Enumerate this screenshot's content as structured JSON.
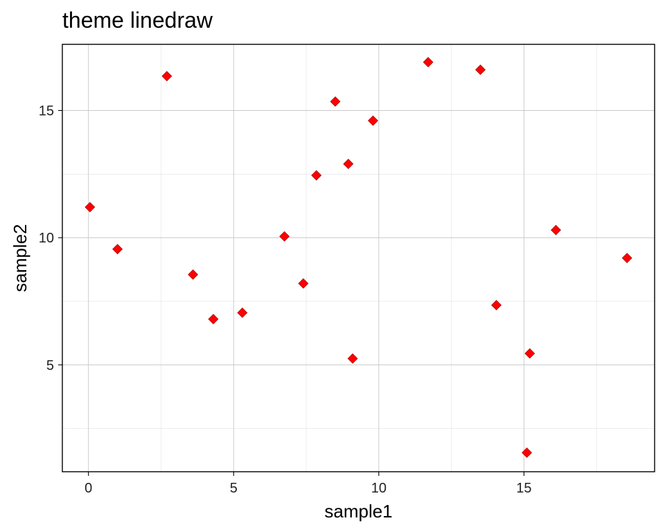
{
  "chart_data": {
    "type": "scatter",
    "title": "theme linedraw",
    "xlabel": "sample1",
    "ylabel": "sample2",
    "xlim": [
      -0.9,
      19.5
    ],
    "ylim": [
      0.8,
      17.6
    ],
    "x_ticks": [
      0,
      5,
      10,
      15
    ],
    "x_tick_labels": [
      "0",
      "5",
      "10",
      "15"
    ],
    "x_minor_ticks": [
      2.5,
      7.5,
      12.5,
      17.5
    ],
    "y_ticks": [
      5,
      10,
      15
    ],
    "y_tick_labels": [
      "5",
      "10",
      "15"
    ],
    "y_minor_ticks": [
      2.5,
      7.5,
      12.5
    ],
    "grid": true,
    "legend": "none",
    "marker": "diamond",
    "point_color": "#ff0000",
    "x": [
      0.05,
      1.0,
      2.7,
      3.6,
      4.3,
      5.3,
      6.75,
      7.4,
      7.85,
      8.5,
      8.95,
      9.1,
      9.8,
      11.7,
      13.5,
      14.05,
      15.1,
      15.2,
      16.1,
      18.55
    ],
    "y": [
      11.2,
      9.55,
      16.35,
      8.55,
      6.8,
      7.05,
      10.05,
      8.2,
      12.45,
      15.35,
      12.9,
      5.25,
      14.6,
      16.9,
      16.6,
      7.35,
      1.55,
      5.45,
      10.3,
      9.2
    ]
  }
}
